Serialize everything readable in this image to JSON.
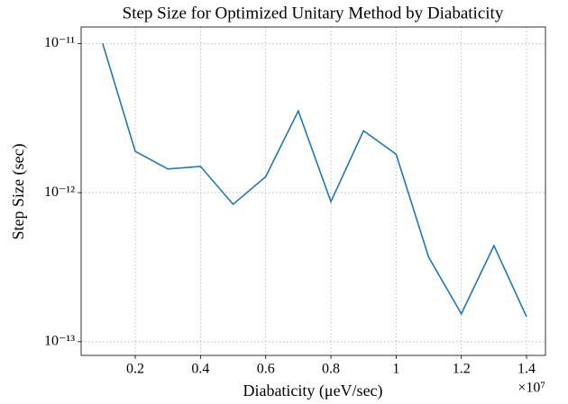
{
  "chart_data": {
    "type": "line",
    "title": "Step Size for Optimized Unitary Method by Diabaticity",
    "xlabel": "Diabaticity (μeV/sec)",
    "ylabel": "Step Size (sec)",
    "x_offset_label": "×10⁷",
    "x": [
      0.1,
      0.2,
      0.3,
      0.4,
      0.5,
      0.6,
      0.7,
      0.8,
      0.9,
      1.0,
      1.1,
      1.2,
      1.3,
      1.4
    ],
    "series": [
      {
        "name": "Step Size",
        "color": "#1f77b4",
        "values": [
          1e-11,
          1.89e-12,
          1.44e-12,
          1.5e-12,
          8.35e-13,
          1.28e-12,
          3.53e-12,
          8.7e-13,
          2.6e-12,
          1.81e-12,
          3.68e-13,
          1.54e-13,
          4.41e-13,
          1.47e-13
        ]
      }
    ],
    "xlim": [
      0.034,
      1.458
    ],
    "xticks": [
      0.2,
      0.4,
      0.6,
      0.8,
      1.0,
      1.2,
      1.4
    ],
    "ylim": [
      1.29e-11,
      8.1e-14
    ],
    "yscale": "log",
    "yticks": [
      {
        "value": 1e-11,
        "label": "10⁻¹¹"
      },
      {
        "value": 1e-12,
        "label": "10⁻¹²"
      },
      {
        "value": 1e-13,
        "label": "10⁻¹³"
      }
    ],
    "grid": true
  }
}
